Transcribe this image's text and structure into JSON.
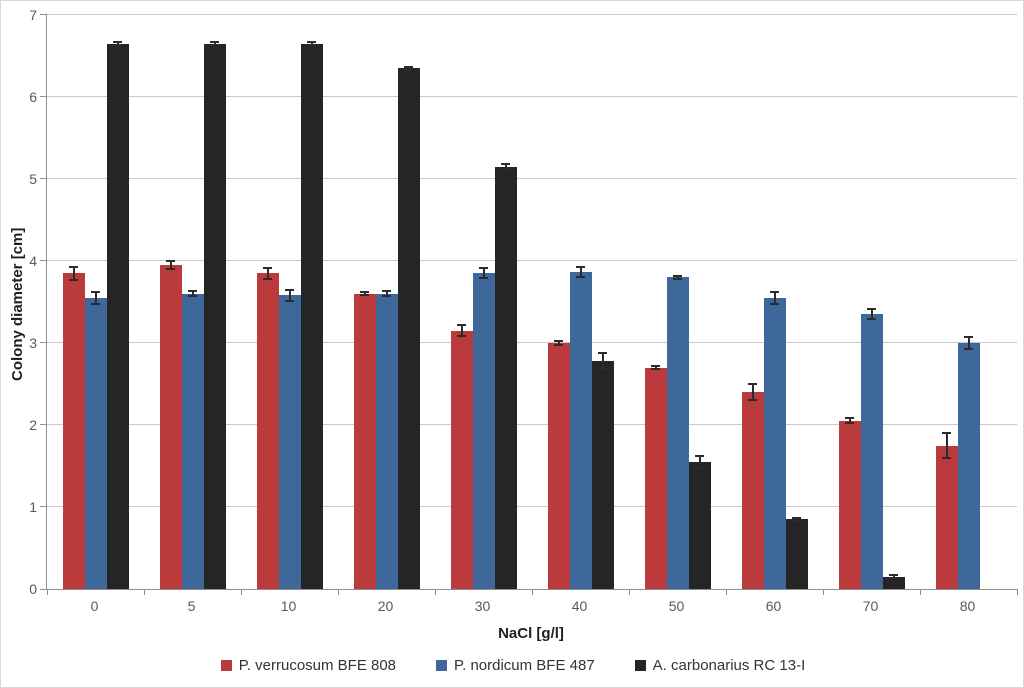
{
  "chart_data": {
    "type": "bar",
    "title": "",
    "xlabel": "NaCl [g/l]",
    "ylabel": "Colony diameter [cm]",
    "ylim": [
      0,
      7
    ],
    "ytick_step": 1,
    "yticks": [
      0,
      1,
      2,
      3,
      4,
      5,
      6,
      7
    ],
    "grid": true,
    "legend_position": "bottom",
    "categories": [
      "0",
      "5",
      "10",
      "20",
      "30",
      "40",
      "50",
      "60",
      "70",
      "80"
    ],
    "series": [
      {
        "name": "P. verrucosum BFE 808",
        "color": "#bb3a3c",
        "values": [
          3.85,
          3.95,
          3.85,
          3.6,
          3.15,
          3.0,
          2.7,
          2.4,
          2.05,
          1.75
        ],
        "errors": [
          0.08,
          0.05,
          0.07,
          0.02,
          0.07,
          0.02,
          0.02,
          0.1,
          0.03,
          0.15
        ]
      },
      {
        "name": "P. nordicum BFE 487",
        "color": "#3e6899",
        "values": [
          3.55,
          3.6,
          3.58,
          3.6,
          3.85,
          3.87,
          3.8,
          3.55,
          3.35,
          3.0
        ],
        "errors": [
          0.07,
          0.03,
          0.07,
          0.03,
          0.06,
          0.06,
          0.02,
          0.07,
          0.06,
          0.07
        ]
      },
      {
        "name": "A. carbonarius RC 13-I",
        "color": "#252525",
        "values": [
          6.65,
          6.65,
          6.65,
          6.35,
          5.15,
          2.78,
          1.55,
          0.85,
          0.15,
          0
        ],
        "errors": [
          0.02,
          0.02,
          0.02,
          0.02,
          0.03,
          0.1,
          0.07,
          0.02,
          0.02,
          0
        ]
      }
    ],
    "styles": {
      "gridline_color": "#c9c9c9",
      "axis_color": "#8e8e8e",
      "tick_label_color": "#595959",
      "title_color": "#1f1f1f",
      "error_bar_color": "#2b2b2b"
    }
  }
}
